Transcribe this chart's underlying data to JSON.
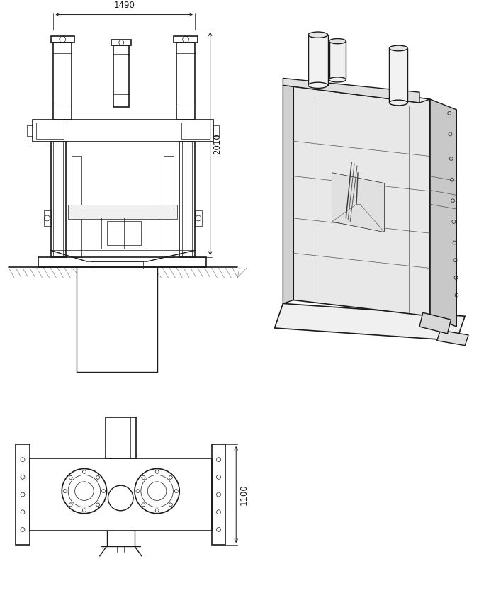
{
  "bg_color": "#ffffff",
  "line_color": "#1a1a1a",
  "dim_1490": "1490",
  "dim_2010": "2010",
  "dim_1100": "1100",
  "lw_main": 1.0,
  "lw_thin": 0.5,
  "lw_dim": 0.7
}
